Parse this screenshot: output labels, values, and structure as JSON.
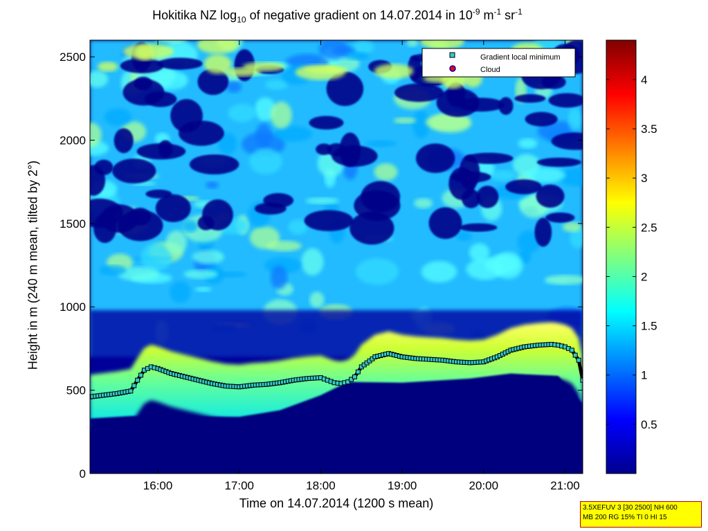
{
  "figure": {
    "title_main": "Hokitika NZ log",
    "title_sub": "10",
    "title_rest": " of negative gradient on 14.07.2014 in 10",
    "title_sup1": "-9",
    "title_unit1": " m",
    "title_sup2": "-1",
    "title_unit2": " sr",
    "title_sup3": "-1",
    "ylabel": "Height in m (240 m mean, tilted by 2°)",
    "xlabel": "Time on 14.07.2014 (1200 s mean)",
    "info_line1": "3.5XEFUV 3 [30 2500] NH 600",
    "info_line2": "MB 200 RG 15% TI 0 HI 15"
  },
  "legend": {
    "items": [
      {
        "label": "Gradient local minimum",
        "color": "#33cccc",
        "marker": "square"
      },
      {
        "label": "Cloud",
        "color": "#ff0000",
        "marker": "circle"
      }
    ]
  },
  "colors": {
    "colormap": "jet",
    "background_low": "#00007f",
    "marker_fill": "#33cccc",
    "marker_edge": "#000000"
  },
  "chart_data": {
    "type": "heatmap",
    "xaxis": {
      "range": [
        "15:10",
        "21:13"
      ],
      "ticks": [
        "16:00",
        "17:00",
        "18:00",
        "19:00",
        "20:00",
        "21:00"
      ]
    },
    "yaxis": {
      "range": [
        0,
        2600
      ],
      "ticks": [
        0,
        500,
        1000,
        1500,
        2000,
        2500
      ]
    },
    "colorbar": {
      "range": [
        0,
        4.4
      ],
      "ticks": [
        0.5,
        1,
        1.5,
        2,
        2.5,
        3,
        3.5,
        4
      ]
    },
    "series": [
      {
        "name": "Gradient local minimum",
        "times": [
          "15:10",
          "15:20",
          "15:30",
          "15:40",
          "15:45",
          "15:50",
          "15:55",
          "16:00",
          "16:10",
          "16:20",
          "16:30",
          "16:40",
          "16:50",
          "17:00",
          "17:10",
          "17:20",
          "17:30",
          "17:40",
          "17:50",
          "18:00",
          "18:05",
          "18:10",
          "18:15",
          "18:20",
          "18:25",
          "18:30",
          "18:40",
          "18:50",
          "19:00",
          "19:10",
          "19:20",
          "19:30",
          "19:40",
          "19:50",
          "20:00",
          "20:10",
          "20:20",
          "20:30",
          "20:40",
          "20:50",
          "20:55",
          "21:00",
          "21:05",
          "21:10",
          "21:13"
        ],
        "heights": [
          460,
          470,
          480,
          495,
          560,
          620,
          640,
          630,
          600,
          580,
          560,
          540,
          525,
          520,
          530,
          535,
          545,
          560,
          570,
          575,
          560,
          545,
          540,
          550,
          580,
          640,
          700,
          720,
          700,
          690,
          685,
          680,
          670,
          665,
          670,
          700,
          740,
          760,
          770,
          775,
          770,
          760,
          740,
          680,
          560
        ]
      }
    ],
    "legend_position": "top-right"
  }
}
